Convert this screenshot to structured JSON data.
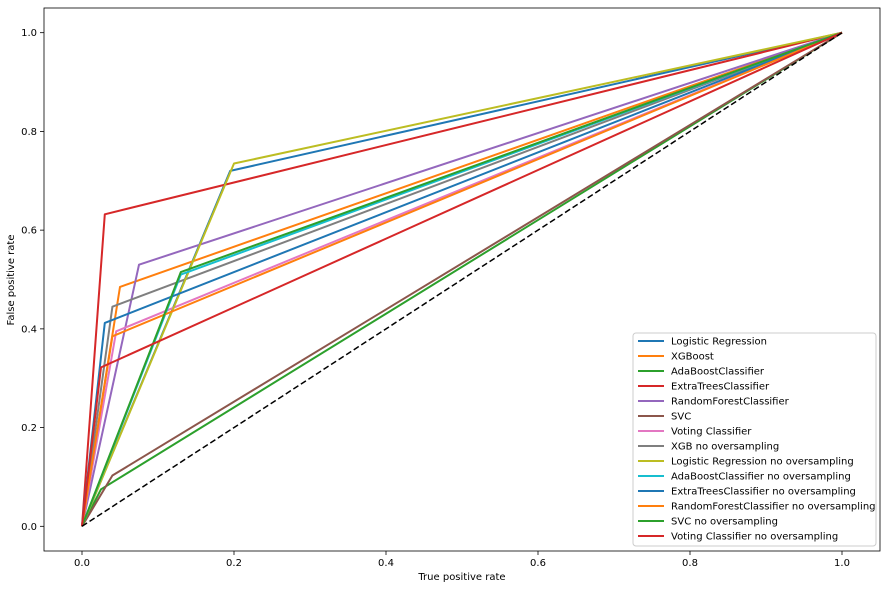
{
  "chart_data": {
    "type": "line",
    "title": "",
    "xlabel": "True positive rate",
    "ylabel": "False positive rate",
    "xlim": [
      -0.05,
      1.05
    ],
    "ylim": [
      -0.05,
      1.05
    ],
    "xticks": [
      "0.0",
      "0.2",
      "0.4",
      "0.6",
      "0.8",
      "1.0"
    ],
    "yticks": [
      "0.0",
      "0.2",
      "0.4",
      "0.6",
      "0.8",
      "1.0"
    ],
    "grid": false,
    "legend_position": "bottom-right",
    "baseline": {
      "x": [
        0,
        1
      ],
      "y": [
        0,
        1
      ],
      "color": "#000000",
      "style": "dashed"
    },
    "series": [
      {
        "name": "Logistic Regression",
        "color": "#1f77b4",
        "x": [
          0,
          0.195,
          1
        ],
        "y": [
          0,
          0.72,
          1
        ]
      },
      {
        "name": "XGBoost",
        "color": "#ff7f0e",
        "x": [
          0,
          0.05,
          1
        ],
        "y": [
          0,
          0.485,
          1
        ]
      },
      {
        "name": "AdaBoostClassifier",
        "color": "#2ca02c",
        "x": [
          0,
          0.025,
          1
        ],
        "y": [
          0,
          0.075,
          1
        ]
      },
      {
        "name": "ExtraTreesClassifier",
        "color": "#d62728",
        "x": [
          0,
          0.03,
          1
        ],
        "y": [
          0,
          0.632,
          1
        ]
      },
      {
        "name": "RandomForestClassifier",
        "color": "#9467bd",
        "x": [
          0,
          0.075,
          1
        ],
        "y": [
          0,
          0.53,
          1
        ]
      },
      {
        "name": "SVC",
        "color": "#8c564b",
        "x": [
          0,
          0.04,
          1
        ],
        "y": [
          0,
          0.103,
          1
        ]
      },
      {
        "name": "Voting Classifier",
        "color": "#e377c2",
        "x": [
          0,
          0.045,
          1
        ],
        "y": [
          0,
          0.395,
          1
        ]
      },
      {
        "name": "XGB no oversampling",
        "color": "#7f7f7f",
        "x": [
          0,
          0.04,
          1
        ],
        "y": [
          0,
          0.445,
          1
        ]
      },
      {
        "name": "Logistic Regression no oversampling",
        "color": "#bcbd22",
        "x": [
          0,
          0.2,
          1
        ],
        "y": [
          0,
          0.735,
          1
        ]
      },
      {
        "name": "AdaBoostClassifier no oversampling",
        "color": "#17becf",
        "x": [
          0,
          0.13,
          1
        ],
        "y": [
          0,
          0.51,
          1
        ]
      },
      {
        "name": "ExtraTreesClassifier no oversampling",
        "color": "#1f77b4",
        "x": [
          0,
          0.03,
          1
        ],
        "y": [
          0,
          0.412,
          1
        ]
      },
      {
        "name": "RandomForestClassifier no oversampling",
        "color": "#ff7f0e",
        "x": [
          0,
          0.04,
          1
        ],
        "y": [
          0,
          0.385,
          1
        ]
      },
      {
        "name": "SVC no oversampling",
        "color": "#2ca02c",
        "x": [
          0,
          0.13,
          1
        ],
        "y": [
          0,
          0.515,
          1
        ]
      },
      {
        "name": "Voting Classifier no oversampling",
        "color": "#d62728",
        "x": [
          0,
          0.025,
          1
        ],
        "y": [
          0,
          0.322,
          1
        ]
      }
    ]
  }
}
